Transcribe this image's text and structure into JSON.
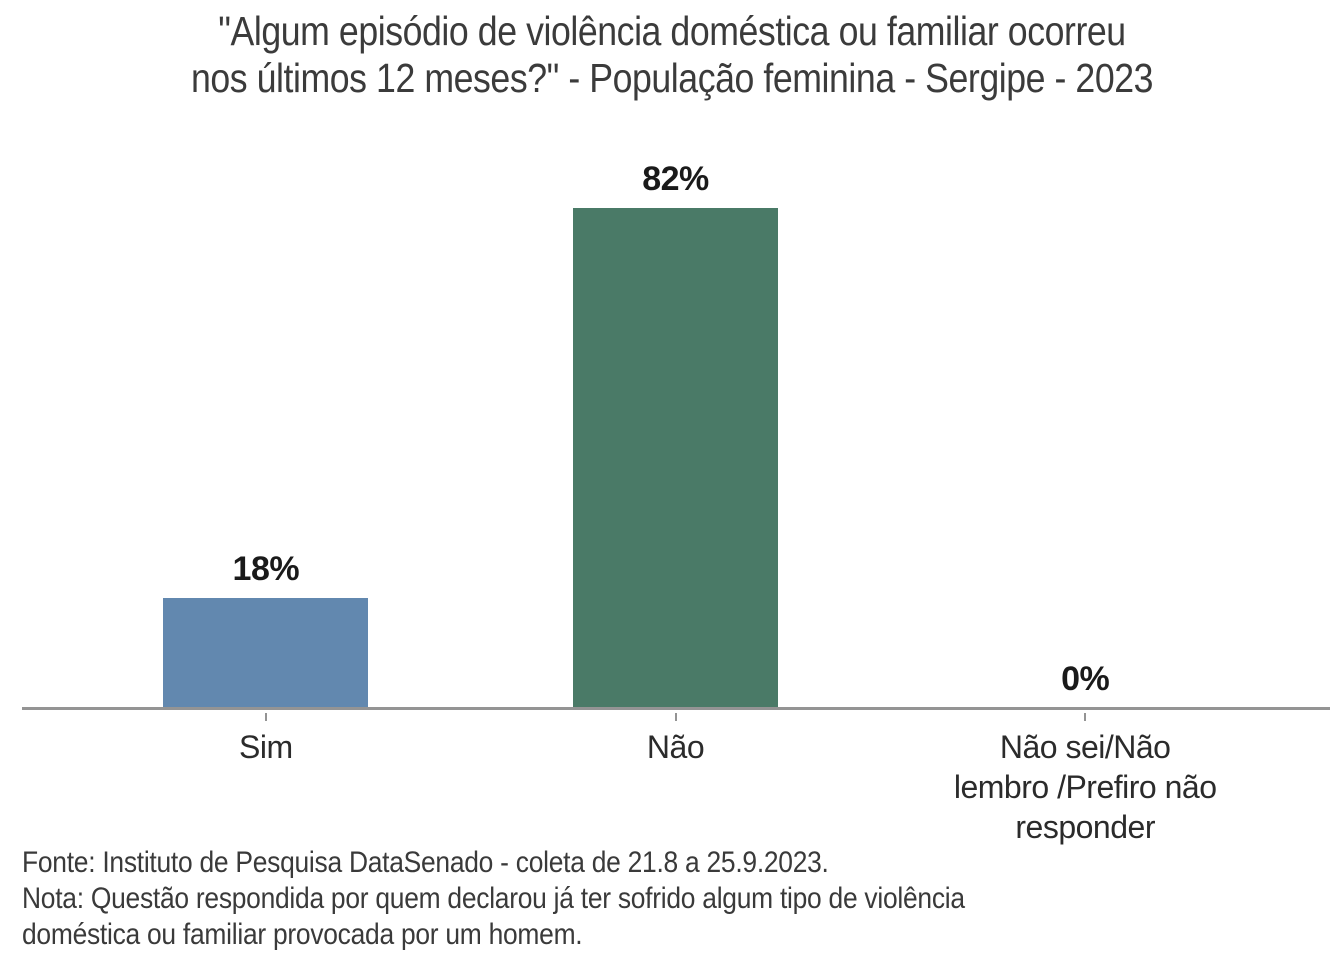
{
  "title": "\"Algum episódio de violência doméstica ou familiar ocorreu\nnos últimos 12 meses?\" - População feminina - Sergipe - 2023",
  "chart_data": {
    "type": "bar",
    "title": "\"Algum episódio de violência doméstica ou familiar ocorreu nos últimos 12 meses?\" - População feminina - Sergipe - 2023",
    "categories": [
      "Sim",
      "Não",
      "Não sei/Não\nlembro /Prefiro não\nresponder"
    ],
    "values": [
      18,
      82,
      0
    ],
    "value_labels": [
      "18%",
      "82%",
      "0%"
    ],
    "bar_colors": [
      "#6288AF",
      "#4A7A67",
      "#A6A6A6"
    ],
    "xlabel": "",
    "ylabel": "",
    "ylim": [
      0,
      100
    ],
    "grid": false,
    "legend": false,
    "axis_color": "#949494",
    "value_label_color": "#1A1A1A",
    "title_color": "#3B3B3B"
  },
  "footnote": {
    "fonte": "Fonte: Instituto de Pesquisa DataSenado - coleta de 21.8 a 25.9.2023.",
    "nota": "Nota: Questão respondida por quem declarou já ter sofrido algum tipo de violência\ndoméstica ou familiar provocada por um homem."
  }
}
